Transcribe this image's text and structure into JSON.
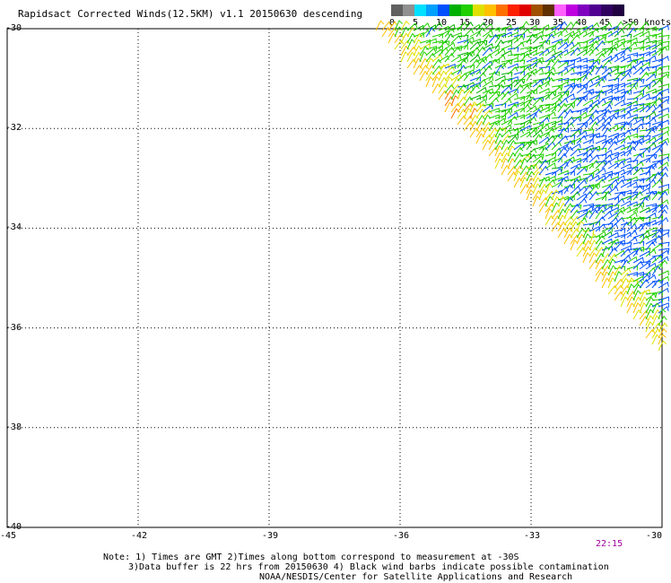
{
  "title": "Rapidsact Corrected Winds(12.5KM) v1.1 20150630 descending",
  "legend": {
    "unit": "knots",
    "ticks": [
      "0",
      "5",
      "10",
      "15",
      "20",
      "25",
      "30",
      "35",
      "40",
      "45",
      ">50 knots"
    ],
    "colors": [
      "#606060",
      "#909090",
      "#00e0ff",
      "#00a0ff",
      "#0050ff",
      "#00b000",
      "#20d000",
      "#e0e000",
      "#ffc000",
      "#ff7000",
      "#ff2000",
      "#e00000",
      "#a05000",
      "#603000",
      "#ff60ff",
      "#c000e0",
      "#8000c0",
      "#500090",
      "#300060",
      "#200040"
    ]
  },
  "axes": {
    "latitude_labels": [
      "-30",
      "-32",
      "-34",
      "-36",
      "-38",
      "-40"
    ],
    "longitude_labels": [
      "-45",
      "-42",
      "-39",
      "-36",
      "-33",
      "-30"
    ]
  },
  "time_label": "22:15",
  "notes": {
    "line1": "Note: 1) Times are GMT 2)Times along bottom correspond to measurement at -30S",
    "line2": "3)Data buffer is 22 hrs from 20150630 4) Black wind barbs indicate possible contamination",
    "line3": "NOAA/NESDIS/Center for Satellite Applications and Research"
  }
}
